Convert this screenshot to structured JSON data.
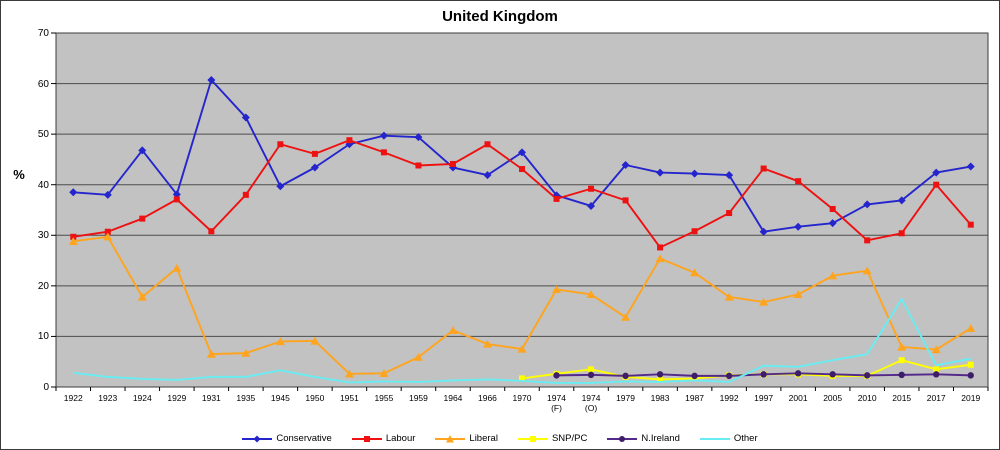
{
  "window": {
    "title": "United Kingdom"
  },
  "chart_data": {
    "type": "line",
    "title": "United Kingdom",
    "xlabel": "",
    "ylabel": "%",
    "ylim": [
      0,
      70
    ],
    "y_ticks": [
      0,
      10,
      20,
      30,
      40,
      50,
      60,
      70
    ],
    "grid": true,
    "legend_position": "bottom",
    "plot_bg_color": "#c2c2c2",
    "gridline_color": "#4c4c4c",
    "categories": [
      "1922",
      "1923",
      "1924",
      "1929",
      "1931",
      "1935",
      "1945",
      "1950",
      "1951",
      "1955",
      "1959",
      "1964",
      "1966",
      "1970",
      "1974\n(F)",
      "1974\n(O)",
      "1979",
      "1983",
      "1987",
      "1992",
      "1997",
      "2001",
      "2005",
      "2010",
      "2015",
      "2017",
      "2019"
    ],
    "series": [
      {
        "name": "Conservative",
        "color": "#2525cd",
        "marker": "diamond",
        "values": [
          38.5,
          38.0,
          46.8,
          38.1,
          60.7,
          53.3,
          39.7,
          43.4,
          48.0,
          49.7,
          49.4,
          43.4,
          41.9,
          46.4,
          37.9,
          35.8,
          43.9,
          42.4,
          42.2,
          41.9,
          30.7,
          31.7,
          32.4,
          36.1,
          36.9,
          42.4,
          43.6
        ]
      },
      {
        "name": "Labour",
        "color": "#ee1111",
        "marker": "square",
        "values": [
          29.7,
          30.7,
          33.3,
          37.1,
          30.8,
          38.0,
          48.0,
          46.1,
          48.8,
          46.4,
          43.8,
          44.1,
          48.0,
          43.1,
          37.2,
          39.2,
          36.9,
          27.6,
          30.8,
          34.4,
          43.2,
          40.7,
          35.2,
          29.0,
          30.4,
          40.0,
          32.1
        ]
      },
      {
        "name": "Liberal",
        "color": "#ffa41e",
        "marker": "triangle",
        "values": [
          28.8,
          29.7,
          17.8,
          23.5,
          6.5,
          6.7,
          9.0,
          9.1,
          2.6,
          2.7,
          5.9,
          11.2,
          8.5,
          7.5,
          19.3,
          18.3,
          13.8,
          25.4,
          22.6,
          17.8,
          16.8,
          18.3,
          22.0,
          23.0,
          7.9,
          7.4,
          11.6
        ]
      },
      {
        "name": "SNP/PC",
        "color": "#ffff00",
        "marker": "square",
        "values": [
          null,
          null,
          null,
          null,
          null,
          null,
          null,
          null,
          null,
          null,
          null,
          null,
          null,
          1.7,
          2.6,
          3.5,
          2.0,
          1.5,
          1.7,
          2.3,
          2.5,
          2.5,
          2.2,
          2.2,
          5.3,
          3.5,
          4.4
        ]
      },
      {
        "name": "N.Ireland",
        "color": "#53298a",
        "marker": "circle",
        "marker_color": "#3e1d6b",
        "values": [
          null,
          null,
          null,
          null,
          null,
          null,
          null,
          null,
          null,
          null,
          null,
          null,
          null,
          null,
          2.3,
          2.4,
          2.2,
          2.5,
          2.2,
          2.2,
          2.5,
          2.7,
          2.5,
          2.3,
          2.4,
          2.5,
          2.3
        ]
      },
      {
        "name": "Other",
        "color": "#68edf2",
        "marker": "none",
        "values": [
          2.8,
          2.0,
          1.6,
          1.4,
          2.0,
          2.0,
          3.3,
          2.0,
          0.9,
          1.1,
          1.0,
          1.3,
          1.5,
          1.2,
          0.8,
          0.8,
          1.1,
          1.0,
          1.3,
          1.0,
          4.2,
          4.0,
          5.3,
          6.5,
          17.4,
          4.3,
          5.6
        ]
      }
    ]
  }
}
